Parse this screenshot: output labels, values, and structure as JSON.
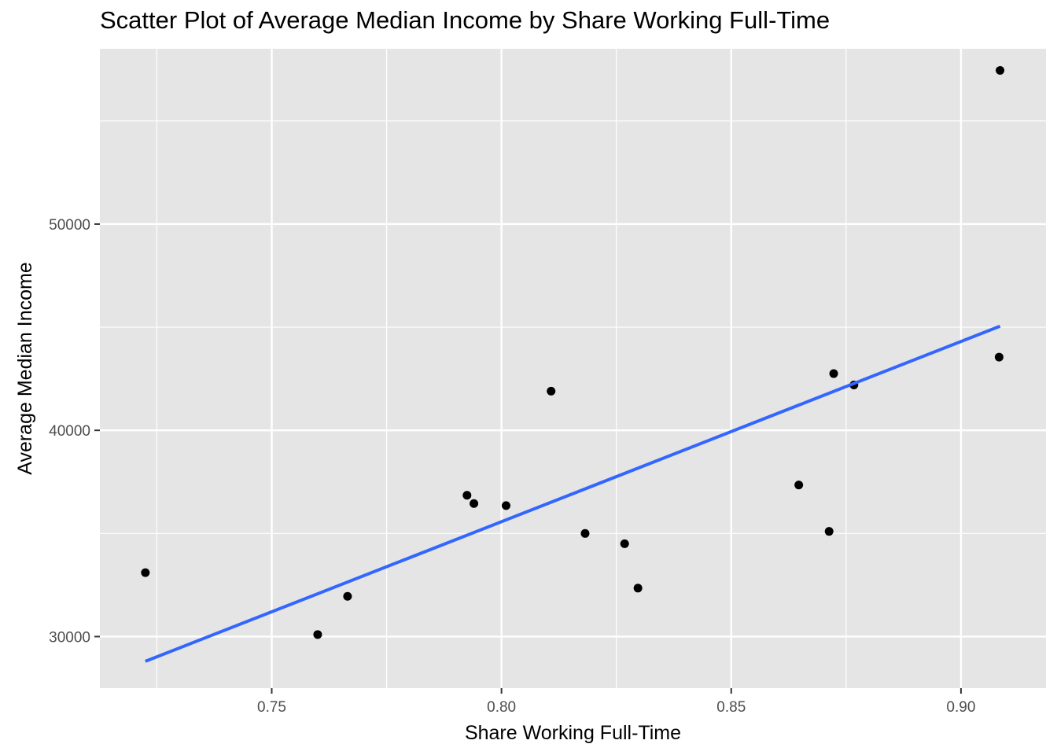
{
  "chart_data": {
    "type": "scatter",
    "title": "Scatter Plot of Average Median Income by Share Working Full-Time",
    "xlabel": "Share Working Full-Time",
    "ylabel": "Average Median Income",
    "xlim": [
      0.7126,
      0.9185
    ],
    "ylim": [
      27500,
      58500
    ],
    "x_ticks": [
      0.75,
      0.8,
      0.85,
      0.9
    ],
    "x_tick_labels": [
      "0.75",
      "0.80",
      "0.85",
      "0.90"
    ],
    "y_ticks": [
      30000,
      40000,
      50000
    ],
    "y_tick_labels": [
      "30000",
      "40000",
      "50000"
    ],
    "grid": true,
    "points": [
      {
        "x": 0.7225,
        "y": 33100
      },
      {
        "x": 0.76,
        "y": 30100
      },
      {
        "x": 0.7665,
        "y": 31950
      },
      {
        "x": 0.7925,
        "y": 36850
      },
      {
        "x": 0.794,
        "y": 36450
      },
      {
        "x": 0.801,
        "y": 36350
      },
      {
        "x": 0.8108,
        "y": 41900
      },
      {
        "x": 0.8182,
        "y": 35000
      },
      {
        "x": 0.8268,
        "y": 34500
      },
      {
        "x": 0.8297,
        "y": 32350
      },
      {
        "x": 0.8647,
        "y": 37350
      },
      {
        "x": 0.8713,
        "y": 35100
      },
      {
        "x": 0.8723,
        "y": 42750
      },
      {
        "x": 0.8767,
        "y": 42200
      },
      {
        "x": 0.9083,
        "y": 43550
      },
      {
        "x": 0.9085,
        "y": 57450
      }
    ],
    "fit_line": {
      "type": "linear",
      "x": [
        0.7225,
        0.9085
      ],
      "y": [
        28800,
        45050
      ],
      "color": "#3366FF"
    },
    "colors": {
      "panel_background": "#E5E5E5",
      "grid": "#FFFFFF",
      "point": "#000000"
    }
  }
}
